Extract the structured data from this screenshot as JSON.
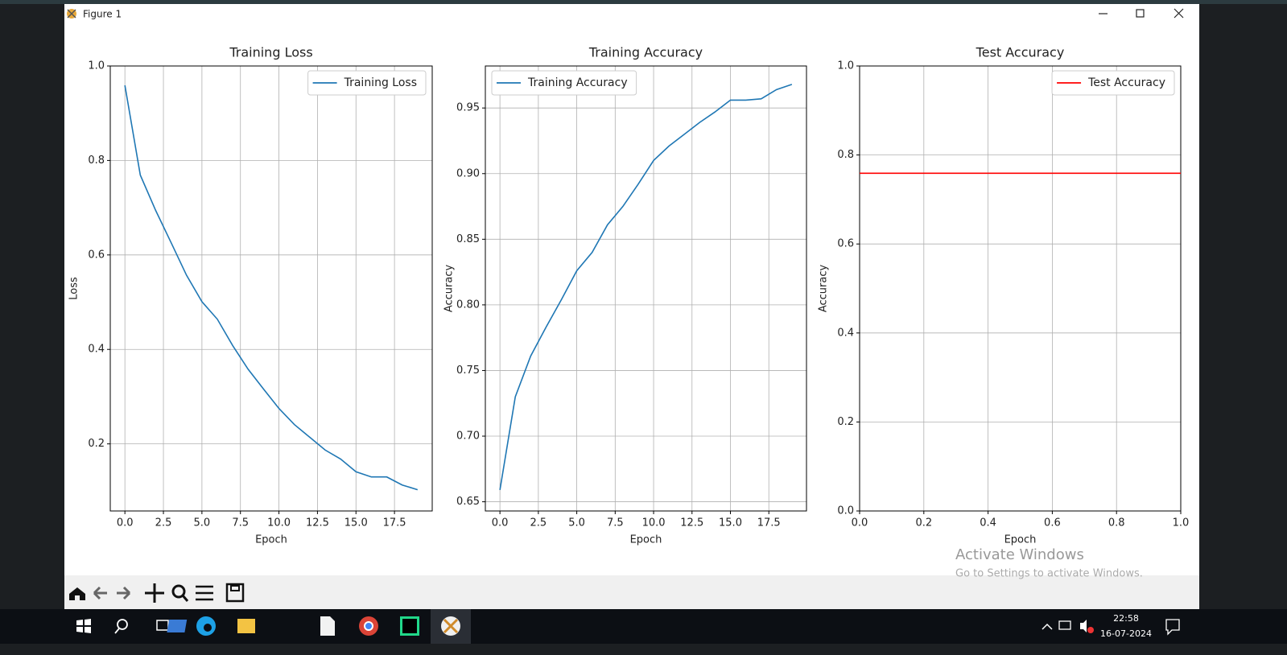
{
  "window": {
    "title": "Figure 1"
  },
  "chart_data": [
    {
      "type": "line",
      "title": "Training Loss",
      "x_label": "Epoch",
      "y_label": "Loss",
      "x": [
        0,
        1,
        2,
        3,
        4,
        5,
        6,
        7,
        8,
        9,
        10,
        11,
        12,
        13,
        14,
        15,
        16,
        17,
        18,
        19
      ],
      "series": [
        {
          "name": "Training Loss",
          "color": "#1f77b4",
          "values": [
            0.959,
            0.769,
            0.694,
            0.626,
            0.557,
            0.501,
            0.464,
            0.408,
            0.358,
            0.316,
            0.275,
            0.241,
            0.214,
            0.187,
            0.168,
            0.141,
            0.13,
            0.13,
            0.113,
            0.103
          ]
        }
      ],
      "xlim": [
        -0.95,
        19.95
      ],
      "ylim": [
        0.058,
        1.0
      ],
      "xticks": [
        {
          "value": 0,
          "label": "0.0"
        },
        2.5,
        {
          "value": 5,
          "label": "5.0"
        },
        7.5,
        {
          "value": 10,
          "label": "10.0"
        },
        12.5,
        {
          "value": 15,
          "label": "15.0"
        },
        17.5
      ],
      "yticks": [
        0.2,
        0.4,
        0.6,
        0.8,
        {
          "value": 1,
          "label": "1.0"
        }
      ],
      "grid": true,
      "legend": "upper right"
    },
    {
      "type": "line",
      "title": "Training Accuracy",
      "x_label": "Epoch",
      "y_label": "Accuracy",
      "x": [
        0,
        1,
        2,
        3,
        4,
        5,
        6,
        7,
        8,
        9,
        10,
        11,
        12,
        13,
        14,
        15,
        16,
        17,
        18,
        19
      ],
      "series": [
        {
          "name": "Training Accuracy",
          "color": "#1f77b4",
          "values": [
            0.659,
            0.73,
            0.761,
            0.783,
            0.804,
            0.826,
            0.84,
            0.861,
            0.875,
            0.892,
            0.91,
            0.921,
            0.93,
            0.939,
            0.947,
            0.956,
            0.956,
            0.957,
            0.964,
            0.968
          ]
        }
      ],
      "xlim": [
        -0.95,
        19.95
      ],
      "ylim": [
        0.643,
        0.982
      ],
      "xticks": [
        {
          "value": 0,
          "label": "0.0"
        },
        2.5,
        {
          "value": 5,
          "label": "5.0"
        },
        7.5,
        {
          "value": 10,
          "label": "10.0"
        },
        12.5,
        {
          "value": 15,
          "label": "15.0"
        },
        17.5
      ],
      "yticks": [
        0.65,
        {
          "value": 0.7,
          "label": "0.70"
        },
        0.75,
        {
          "value": 0.8,
          "label": "0.80"
        },
        0.85,
        {
          "value": 0.9,
          "label": "0.90"
        },
        0.95
      ],
      "grid": true,
      "legend": "upper left"
    },
    {
      "type": "hline",
      "title": "Test Accuracy",
      "x_label": "Epoch",
      "y_label": "Accuracy",
      "series": [
        {
          "name": "Test Accuracy",
          "color": "#ff0000",
          "values": [
            0.759
          ]
        }
      ],
      "xlim": [
        0,
        1
      ],
      "ylim": [
        0,
        1
      ],
      "xticks": [
        {
          "value": 0,
          "label": "0.0"
        },
        0.2,
        0.4,
        0.6,
        0.8,
        {
          "value": 1,
          "label": "1.0"
        }
      ],
      "yticks": [
        {
          "value": 0,
          "label": "0.0"
        },
        0.2,
        0.4,
        0.6,
        0.8,
        {
          "value": 1,
          "label": "1.0"
        }
      ],
      "grid": true,
      "legend": "upper right"
    }
  ],
  "watermark": {
    "title": "Activate Windows",
    "subtitle": "Go to Settings to activate Windows."
  },
  "taskbar": {
    "time": "22:58",
    "date": "16-07-2024"
  }
}
